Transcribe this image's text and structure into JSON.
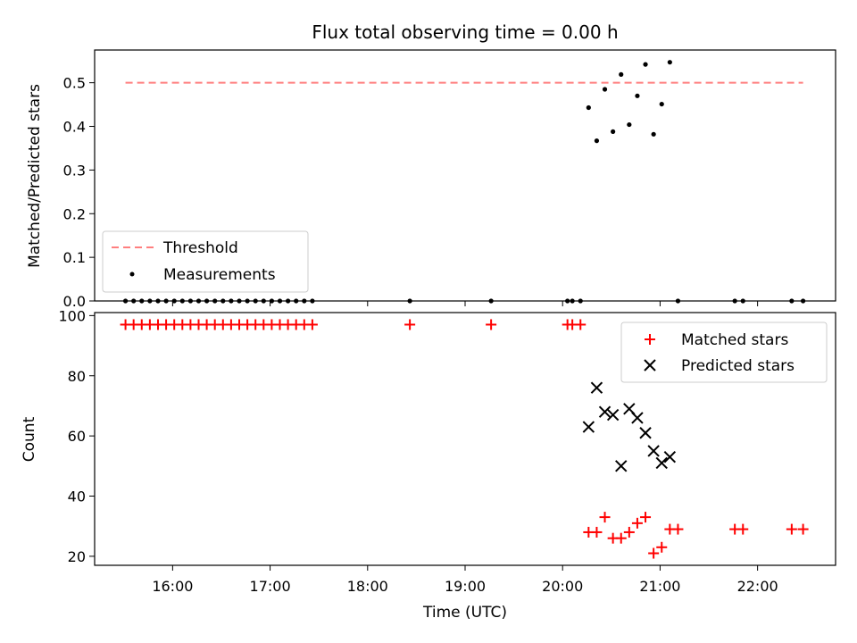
{
  "chart_data": [
    {
      "type": "scatter",
      "title": "Flux total observing time = 0.00 h",
      "ylabel": "Matched/Predicted stars",
      "ylim": [
        0,
        0.575
      ],
      "yticks": [
        "0.0",
        "0.1",
        "0.2",
        "0.3",
        "0.4",
        "0.5"
      ],
      "legend_location": "lower-left",
      "threshold": {
        "name": "Threshold",
        "value": 0.5,
        "x_start": "15:31",
        "x_end": "22:28",
        "color": "#ff7f7f"
      },
      "series": [
        {
          "name": "Measurements",
          "color": "#000000",
          "points": [
            [
              "15:31",
              0
            ],
            [
              "15:36",
              0
            ],
            [
              "15:41",
              0
            ],
            [
              "15:46",
              0
            ],
            [
              "15:51",
              0
            ],
            [
              "15:56",
              0
            ],
            [
              "16:01",
              0
            ],
            [
              "16:06",
              0
            ],
            [
              "16:11",
              0
            ],
            [
              "16:16",
              0
            ],
            [
              "16:21",
              0
            ],
            [
              "16:26",
              0
            ],
            [
              "16:31",
              0
            ],
            [
              "16:36",
              0
            ],
            [
              "16:41",
              0
            ],
            [
              "16:46",
              0
            ],
            [
              "16:51",
              0
            ],
            [
              "16:56",
              0
            ],
            [
              "17:01",
              0
            ],
            [
              "17:06",
              0
            ],
            [
              "17:11",
              0
            ],
            [
              "17:16",
              0
            ],
            [
              "17:21",
              0
            ],
            [
              "17:26",
              0
            ],
            [
              "18:26",
              0
            ],
            [
              "19:16",
              0
            ],
            [
              "20:03",
              0
            ],
            [
              "20:06",
              0
            ],
            [
              "20:11",
              0
            ],
            [
              "20:16",
              0.443
            ],
            [
              "20:21",
              0.367
            ],
            [
              "20:26",
              0.485
            ],
            [
              "20:31",
              0.388
            ],
            [
              "20:36",
              0.519
            ],
            [
              "20:41",
              0.404
            ],
            [
              "20:46",
              0.47
            ],
            [
              "20:51",
              0.542
            ],
            [
              "20:56",
              0.382
            ],
            [
              "21:01",
              0.451
            ],
            [
              "21:06",
              0.547
            ],
            [
              "21:11",
              0
            ],
            [
              "21:46",
              0
            ],
            [
              "21:51",
              0
            ],
            [
              "22:21",
              0
            ],
            [
              "22:28",
              0
            ]
          ]
        }
      ]
    },
    {
      "type": "scatter",
      "xlabel": "Time (UTC)",
      "ylabel": "Count",
      "ylim": [
        17,
        101
      ],
      "yticks": [
        "20",
        "40",
        "60",
        "80",
        "100"
      ],
      "xlim": [
        "15:12",
        "22:48"
      ],
      "xticks": [
        "16:00",
        "17:00",
        "18:00",
        "19:00",
        "20:00",
        "21:00",
        "22:00"
      ],
      "legend_location": "upper-right",
      "series": [
        {
          "name": "Matched stars",
          "marker": "plus",
          "color": "#ff0000",
          "points": [
            [
              "15:31",
              97
            ],
            [
              "15:36",
              97
            ],
            [
              "15:41",
              97
            ],
            [
              "15:46",
              97
            ],
            [
              "15:51",
              97
            ],
            [
              "15:56",
              97
            ],
            [
              "16:01",
              97
            ],
            [
              "16:06",
              97
            ],
            [
              "16:11",
              97
            ],
            [
              "16:16",
              97
            ],
            [
              "16:21",
              97
            ],
            [
              "16:26",
              97
            ],
            [
              "16:31",
              97
            ],
            [
              "16:36",
              97
            ],
            [
              "16:41",
              97
            ],
            [
              "16:46",
              97
            ],
            [
              "16:51",
              97
            ],
            [
              "16:56",
              97
            ],
            [
              "17:01",
              97
            ],
            [
              "17:06",
              97
            ],
            [
              "17:11",
              97
            ],
            [
              "17:16",
              97
            ],
            [
              "17:21",
              97
            ],
            [
              "17:26",
              97
            ],
            [
              "18:26",
              97
            ],
            [
              "19:16",
              97
            ],
            [
              "20:03",
              97
            ],
            [
              "20:06",
              97
            ],
            [
              "20:11",
              97
            ],
            [
              "20:16",
              28
            ],
            [
              "20:21",
              28
            ],
            [
              "20:26",
              33
            ],
            [
              "20:31",
              26
            ],
            [
              "20:36",
              26
            ],
            [
              "20:41",
              28
            ],
            [
              "20:46",
              31
            ],
            [
              "20:51",
              33
            ],
            [
              "20:56",
              21
            ],
            [
              "21:01",
              23
            ],
            [
              "21:06",
              29
            ],
            [
              "21:11",
              29
            ],
            [
              "21:46",
              29
            ],
            [
              "21:51",
              29
            ],
            [
              "22:21",
              29
            ],
            [
              "22:28",
              29
            ]
          ]
        },
        {
          "name": "Predicted stars",
          "marker": "x",
          "color": "#000000",
          "points": [
            [
              "20:16",
              63
            ],
            [
              "20:21",
              76
            ],
            [
              "20:26",
              68
            ],
            [
              "20:31",
              67
            ],
            [
              "20:36",
              50
            ],
            [
              "20:41",
              69
            ],
            [
              "20:46",
              66
            ],
            [
              "20:51",
              61
            ],
            [
              "20:56",
              55
            ],
            [
              "21:01",
              51
            ],
            [
              "21:06",
              53
            ]
          ]
        }
      ]
    }
  ]
}
